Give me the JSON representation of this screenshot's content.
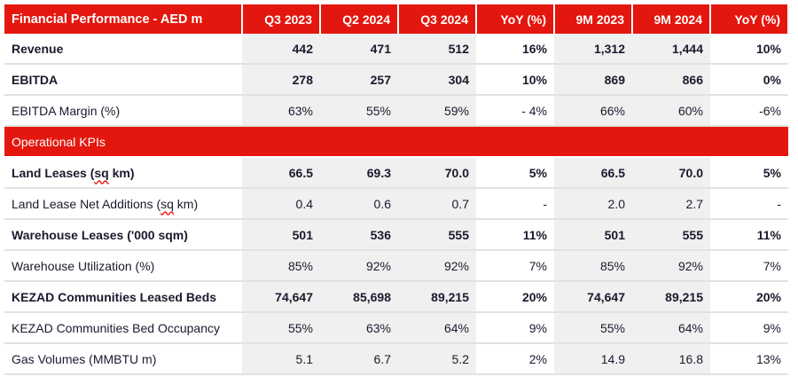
{
  "header": {
    "title": "Financial Performance - AED m",
    "columns": [
      "Q3 2023",
      "Q2 2024",
      "Q3 2024",
      "YoY (%)",
      "9M 2023",
      "9M 2024",
      "YoY (%)"
    ]
  },
  "rows": [
    {
      "label": "Revenue",
      "bold": true,
      "values": [
        "442",
        "471",
        "512",
        "16%",
        "1,312",
        "1,444",
        "10%"
      ]
    },
    {
      "label": "EBITDA",
      "bold": true,
      "values": [
        "278",
        "257",
        "304",
        "10%",
        "869",
        "866",
        "0%"
      ]
    },
    {
      "label": "EBITDA Margin (%)",
      "bold": false,
      "values": [
        "63%",
        "55%",
        "59%",
        "- 4%",
        "66%",
        "60%",
        "-6%"
      ]
    }
  ],
  "section": {
    "label": "Operational KPIs"
  },
  "kpi_rows": [
    {
      "label": "Land Leases (sq km)",
      "bold": true,
      "values": [
        "66.5",
        "69.3",
        "70.0",
        "5%",
        "66.5",
        "70.0",
        "5%"
      ]
    },
    {
      "label": "Land Lease Net Additions (sq km)",
      "bold": false,
      "values": [
        "0.4",
        "0.6",
        "0.7",
        "-",
        "2.0",
        "2.7",
        "-"
      ]
    },
    {
      "label": "Warehouse Leases ('000 sqm)",
      "bold": true,
      "values": [
        "501",
        "536",
        "555",
        "11%",
        "501",
        "555",
        "11%"
      ]
    },
    {
      "label": "Warehouse Utilization (%)",
      "bold": false,
      "values": [
        "85%",
        "92%",
        "92%",
        "7%",
        "85%",
        "92%",
        "7%"
      ]
    },
    {
      "label": "KEZAD Communities Leased Beds",
      "bold": true,
      "values": [
        "74,647",
        "85,698",
        "89,215",
        "20%",
        "74,647",
        "89,215",
        "20%"
      ]
    },
    {
      "label": "KEZAD Communities Bed Occupancy",
      "bold": false,
      "values": [
        "55%",
        "63%",
        "64%",
        "9%",
        "55%",
        "64%",
        "9%"
      ]
    },
    {
      "label": "Gas Volumes (MMBTU m)",
      "bold": false,
      "values": [
        "5.1",
        "6.7",
        "5.2",
        "2%",
        "14.9",
        "16.8",
        "13%"
      ]
    }
  ],
  "colors": {
    "accent": "#e4170e",
    "shade": "#f0f0f0"
  }
}
